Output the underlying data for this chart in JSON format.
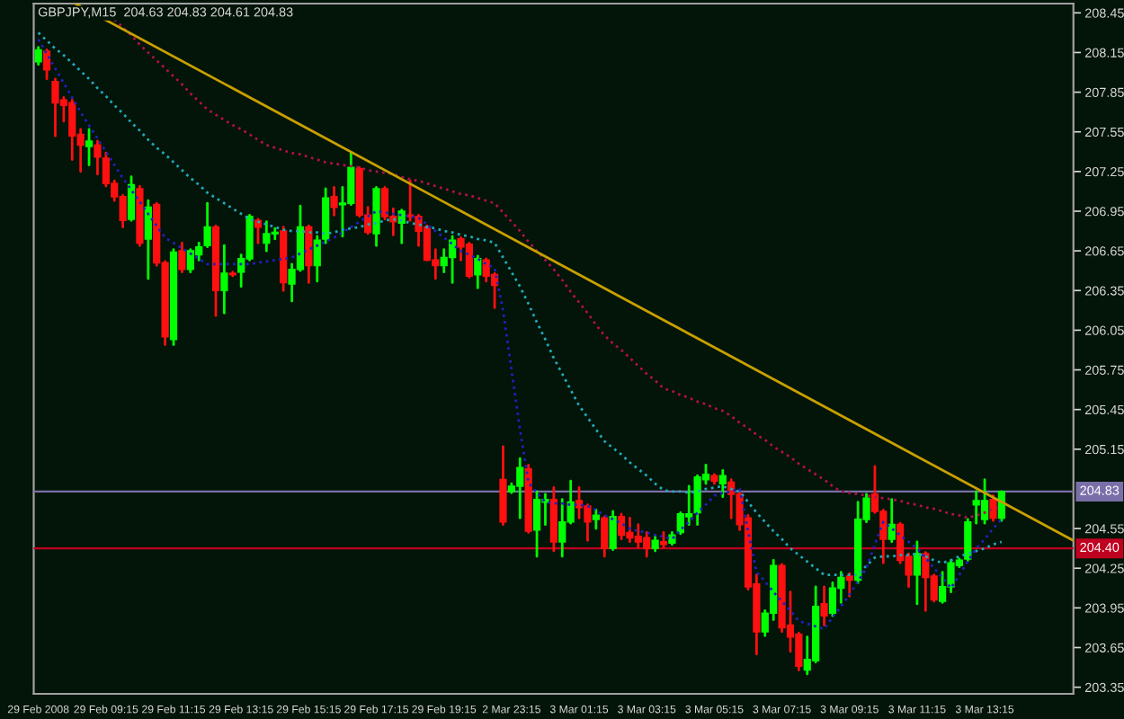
{
  "chart_data": {
    "type": "candlestick",
    "title": "GBPJPY,M15  204.63 204.83 204.61 204.83",
    "categories": [
      "29 Feb 2008",
      null,
      null,
      null,
      null,
      null,
      null,
      null,
      "29 Feb 09:15",
      null,
      null,
      null,
      null,
      null,
      null,
      null,
      "29 Feb 11:15",
      null,
      null,
      null,
      null,
      null,
      null,
      null,
      "29 Feb 13:15",
      null,
      null,
      null,
      null,
      null,
      null,
      null,
      "29 Feb 15:15",
      null,
      null,
      null,
      null,
      null,
      null,
      null,
      "29 Feb 17:15",
      null,
      null,
      null,
      null,
      null,
      null,
      null,
      "29 Feb 19:15",
      null,
      null,
      null,
      null,
      null,
      null,
      null,
      "2 Mar 23:15",
      null,
      null,
      null,
      null,
      null,
      null,
      null,
      "3 Mar 01:15",
      null,
      null,
      null,
      null,
      null,
      null,
      null,
      "3 Mar 03:15",
      null,
      null,
      null,
      null,
      null,
      null,
      null,
      "3 Mar 05:15",
      null,
      null,
      null,
      null,
      null,
      null,
      null,
      "3 Mar 07:15",
      null,
      null,
      null,
      null,
      null,
      null,
      null,
      "3 Mar 09:15",
      null,
      null,
      null,
      null,
      null,
      null,
      null,
      "3 Mar 11:15",
      null,
      null,
      null,
      null,
      null,
      null,
      null,
      "3 Mar 13:15",
      null,
      null
    ],
    "ohlc": [
      [
        208.08,
        208.19,
        208.06,
        208.17
      ],
      [
        208.16,
        208.17,
        207.95,
        208.02
      ],
      [
        207.93,
        207.95,
        207.52,
        207.77
      ],
      [
        207.79,
        207.81,
        207.63,
        207.75
      ],
      [
        207.77,
        207.79,
        207.34,
        207.52
      ],
      [
        207.53,
        207.57,
        207.25,
        207.45
      ],
      [
        207.44,
        207.57,
        207.3,
        207.48
      ],
      [
        207.45,
        207.48,
        207.23,
        207.36
      ],
      [
        207.35,
        207.39,
        207.14,
        207.16
      ],
      [
        207.16,
        207.18,
        207.03,
        207.06
      ],
      [
        207.06,
        207.07,
        206.83,
        206.88
      ],
      [
        206.89,
        207.21,
        206.88,
        207.15
      ],
      [
        207.12,
        207.14,
        206.69,
        206.71
      ],
      [
        206.74,
        207.03,
        206.44,
        206.98
      ],
      [
        207.0,
        207.01,
        206.54,
        206.56
      ],
      [
        206.56,
        206.57,
        205.94,
        206.0
      ],
      [
        205.98,
        206.66,
        205.94,
        206.64
      ],
      [
        206.65,
        206.71,
        206.49,
        206.51
      ],
      [
        206.51,
        206.66,
        206.49,
        206.65
      ],
      [
        206.62,
        206.71,
        206.58,
        206.68
      ],
      [
        206.69,
        207.01,
        206.68,
        206.83
      ],
      [
        206.83,
        206.84,
        206.16,
        206.35
      ],
      [
        206.35,
        206.69,
        206.18,
        206.48
      ],
      [
        206.48,
        206.49,
        206.46,
        206.47
      ],
      [
        206.49,
        206.62,
        206.38,
        206.59
      ],
      [
        206.59,
        206.92,
        206.58,
        206.91
      ],
      [
        206.88,
        206.89,
        206.71,
        206.83
      ],
      [
        206.71,
        206.87,
        206.65,
        206.78
      ],
      [
        206.78,
        206.82,
        206.74,
        206.79
      ],
      [
        206.8,
        206.83,
        206.35,
        206.41
      ],
      [
        206.4,
        206.55,
        206.27,
        206.51
      ],
      [
        206.51,
        206.99,
        206.5,
        206.83
      ],
      [
        206.83,
        206.84,
        206.41,
        206.54
      ],
      [
        206.54,
        206.76,
        206.42,
        206.73
      ],
      [
        206.74,
        207.12,
        206.71,
        207.05
      ],
      [
        207.06,
        207.13,
        206.92,
        206.98
      ],
      [
        207.0,
        207.13,
        206.76,
        207.01
      ],
      [
        207.01,
        207.39,
        207.0,
        207.28
      ],
      [
        207.27,
        207.28,
        206.91,
        206.92
      ],
      [
        206.92,
        206.98,
        206.78,
        206.79
      ],
      [
        206.78,
        207.13,
        206.69,
        207.12
      ],
      [
        207.12,
        207.13,
        206.89,
        206.91
      ],
      [
        206.91,
        206.97,
        206.77,
        206.87
      ],
      [
        206.86,
        206.96,
        206.71,
        206.95
      ],
      [
        206.92,
        207.18,
        206.88,
        206.91
      ],
      [
        206.91,
        206.92,
        206.69,
        206.8
      ],
      [
        206.83,
        206.84,
        206.58,
        206.58
      ],
      [
        206.58,
        206.66,
        206.44,
        206.54
      ],
      [
        206.54,
        206.66,
        206.49,
        206.6
      ],
      [
        206.6,
        206.76,
        206.41,
        206.73
      ],
      [
        206.74,
        206.75,
        206.58,
        206.68
      ],
      [
        206.7,
        206.71,
        206.45,
        206.46
      ],
      [
        206.47,
        206.61,
        206.37,
        206.59
      ],
      [
        206.58,
        206.59,
        206.42,
        206.46
      ],
      [
        206.47,
        206.48,
        206.22,
        206.39
      ],
      [
        204.92,
        205.17,
        204.58,
        204.6
      ],
      [
        204.83,
        204.89,
        204.82,
        204.87
      ],
      [
        204.87,
        205.08,
        204.63,
        205.01
      ],
      [
        205.0,
        205.03,
        204.52,
        204.53
      ],
      [
        204.54,
        204.83,
        204.34,
        204.77
      ],
      [
        204.75,
        204.81,
        204.58,
        204.77
      ],
      [
        204.77,
        204.86,
        204.38,
        204.45
      ],
      [
        204.45,
        204.77,
        204.34,
        204.6
      ],
      [
        204.6,
        204.91,
        204.59,
        204.75
      ],
      [
        204.76,
        204.86,
        204.63,
        204.71
      ],
      [
        204.72,
        204.73,
        204.46,
        204.6
      ],
      [
        204.62,
        204.69,
        204.55,
        204.65
      ],
      [
        204.63,
        204.64,
        204.34,
        204.4
      ],
      [
        204.4,
        204.68,
        204.39,
        204.64
      ],
      [
        204.64,
        204.66,
        204.47,
        204.5
      ],
      [
        204.52,
        204.63,
        204.45,
        204.48
      ],
      [
        204.49,
        204.58,
        204.41,
        204.45
      ],
      [
        204.48,
        204.52,
        204.34,
        204.4
      ],
      [
        204.4,
        204.49,
        204.38,
        204.46
      ],
      [
        204.45,
        204.52,
        204.41,
        204.43
      ],
      [
        204.44,
        204.52,
        204.43,
        204.5
      ],
      [
        204.52,
        204.67,
        204.51,
        204.66
      ],
      [
        204.64,
        204.87,
        204.58,
        204.66
      ],
      [
        204.67,
        204.95,
        204.58,
        204.94
      ],
      [
        204.92,
        205.03,
        204.89,
        204.96
      ],
      [
        204.95,
        204.96,
        204.89,
        204.91
      ],
      [
        204.89,
        204.99,
        204.79,
        204.95
      ],
      [
        204.9,
        204.92,
        204.63,
        204.81
      ],
      [
        204.81,
        204.82,
        204.54,
        204.58
      ],
      [
        204.63,
        204.65,
        204.09,
        204.11
      ],
      [
        204.13,
        204.2,
        203.6,
        203.77
      ],
      [
        203.77,
        203.93,
        203.74,
        203.91
      ],
      [
        203.91,
        204.31,
        203.86,
        204.27
      ],
      [
        204.27,
        204.28,
        203.77,
        203.8
      ],
      [
        203.82,
        204.07,
        203.62,
        203.73
      ],
      [
        203.75,
        203.76,
        203.48,
        203.51
      ],
      [
        203.48,
        203.73,
        203.45,
        203.56
      ],
      [
        203.55,
        204.11,
        203.54,
        203.96
      ],
      [
        203.98,
        204.11,
        203.82,
        203.89
      ],
      [
        203.91,
        204.14,
        203.89,
        204.1
      ],
      [
        204.1,
        204.22,
        203.99,
        204.18
      ],
      [
        204.19,
        204.21,
        204.04,
        204.16
      ],
      [
        204.16,
        204.75,
        204.14,
        204.62
      ],
      [
        204.62,
        204.81,
        204.6,
        204.78
      ],
      [
        204.81,
        205.02,
        204.67,
        204.68
      ],
      [
        204.68,
        204.69,
        204.29,
        204.47
      ],
      [
        204.47,
        204.77,
        204.45,
        204.58
      ],
      [
        204.58,
        204.59,
        204.29,
        204.31
      ],
      [
        204.34,
        204.36,
        204.11,
        204.2
      ],
      [
        204.2,
        204.45,
        203.98,
        204.36
      ],
      [
        204.36,
        204.37,
        203.93,
        204.18
      ],
      [
        204.19,
        204.2,
        204.0,
        204.01
      ],
      [
        204.0,
        204.22,
        203.99,
        204.11
      ],
      [
        204.11,
        204.31,
        204.07,
        204.29
      ],
      [
        204.27,
        204.32,
        204.26,
        204.31
      ],
      [
        204.32,
        204.62,
        204.31,
        204.6
      ],
      [
        204.73,
        204.83,
        204.59,
        204.76
      ],
      [
        204.62,
        204.92,
        204.59,
        204.76
      ],
      [
        204.77,
        204.8,
        204.61,
        204.63
      ],
      [
        204.63,
        204.83,
        204.61,
        204.83
      ]
    ],
    "series": [
      {
        "type": "line",
        "color": "#1fa8b8",
        "line_style": "dotted",
        "values": [
          208.3,
          208.24,
          208.18,
          208.13,
          208.07,
          208.01,
          207.95,
          207.88,
          207.82,
          207.75,
          207.69,
          207.62,
          207.56,
          207.49,
          207.43,
          207.38,
          207.32,
          207.26,
          207.2,
          207.15,
          207.09,
          207.05,
          207.01,
          206.97,
          206.93,
          206.89,
          206.87,
          206.85,
          206.83,
          206.81,
          206.8,
          206.8,
          206.79,
          206.79,
          206.78,
          206.79,
          206.81,
          206.82,
          206.83,
          206.85,
          206.86,
          206.88,
          206.89,
          206.88,
          206.86,
          206.85,
          206.83,
          206.82,
          206.8,
          206.79,
          206.77,
          206.76,
          206.74,
          206.73,
          206.71,
          206.6,
          206.49,
          206.38,
          206.25,
          206.11,
          205.98,
          205.84,
          205.72,
          205.6,
          205.48,
          205.39,
          205.3,
          205.21,
          205.16,
          205.11,
          205.05,
          205.0,
          204.95,
          204.89,
          204.84,
          204.83,
          204.83,
          204.82,
          204.83,
          204.85,
          204.86,
          204.87,
          204.85,
          204.83,
          204.75,
          204.67,
          204.6,
          204.53,
          204.47,
          204.4,
          204.35,
          204.3,
          204.25,
          204.2,
          204.2,
          204.2,
          204.2,
          204.2,
          204.27,
          204.33,
          204.34,
          204.34,
          204.35,
          204.35,
          204.36,
          204.34,
          204.31,
          204.29,
          204.31,
          204.34,
          204.36,
          204.38,
          204.4,
          204.43,
          204.45
        ]
      },
      {
        "type": "line",
        "color": "#b0104a",
        "line_style": "dotted",
        "values": [
          null,
          null,
          null,
          null,
          null,
          null,
          null,
          null,
          null,
          208.4,
          208.34,
          208.28,
          208.21,
          208.15,
          208.09,
          208.03,
          207.97,
          207.91,
          207.84,
          207.78,
          207.72,
          207.68,
          207.64,
          207.6,
          207.57,
          207.53,
          207.49,
          207.45,
          207.43,
          207.41,
          207.39,
          207.38,
          207.36,
          207.34,
          207.32,
          207.31,
          207.3,
          207.29,
          207.28,
          207.26,
          207.25,
          207.24,
          207.23,
          207.21,
          207.19,
          207.18,
          207.16,
          207.14,
          207.12,
          207.1,
          207.08,
          207.07,
          207.05,
          207.03,
          207.01,
          206.94,
          206.87,
          206.8,
          206.72,
          206.65,
          206.58,
          206.51,
          206.43,
          206.34,
          206.26,
          206.18,
          206.09,
          206.01,
          205.95,
          205.9,
          205.84,
          205.78,
          205.72,
          205.67,
          205.61,
          205.59,
          205.56,
          205.54,
          205.51,
          205.49,
          205.46,
          205.44,
          205.4,
          205.35,
          205.31,
          205.26,
          205.22,
          205.17,
          205.13,
          205.09,
          205.04,
          205.0,
          204.96,
          204.92,
          204.87,
          204.83,
          204.82,
          204.81,
          204.8,
          204.79,
          204.78,
          204.77,
          204.76,
          204.74,
          204.73,
          204.71,
          204.7,
          204.68,
          204.66,
          204.65,
          204.63,
          204.65,
          204.67,
          204.7,
          204.72
        ]
      },
      {
        "type": "line",
        "color": "#2020c0",
        "line_style": "dotted",
        "values": [
          208.25,
          208.14,
          208.03,
          207.92,
          207.81,
          207.7,
          207.6,
          207.5,
          207.4,
          207.3,
          207.2,
          207.11,
          207.02,
          206.93,
          206.84,
          206.75,
          206.71,
          206.67,
          206.63,
          206.59,
          206.55,
          206.55,
          206.55,
          206.55,
          206.55,
          206.55,
          206.56,
          206.57,
          206.58,
          206.59,
          206.6,
          206.63,
          206.66,
          206.69,
          206.72,
          206.75,
          206.79,
          206.83,
          206.87,
          206.91,
          206.95,
          206.94,
          206.93,
          206.92,
          206.91,
          206.9,
          206.85,
          206.8,
          206.75,
          206.7,
          206.65,
          206.62,
          206.59,
          206.55,
          206.52,
          206.2,
          205.75,
          205.3,
          204.9,
          204.82,
          204.75,
          204.74,
          204.74,
          204.73,
          204.73,
          204.72,
          204.69,
          204.65,
          204.62,
          204.59,
          204.55,
          204.53,
          204.52,
          204.5,
          204.49,
          204.47,
          204.54,
          204.6,
          204.67,
          204.73,
          204.8,
          204.82,
          204.83,
          204.85,
          204.53,
          204.22,
          204.15,
          204.07,
          204.0,
          203.93,
          203.85,
          203.83,
          203.81,
          203.79,
          203.88,
          203.96,
          204.05,
          204.15,
          204.25,
          204.43,
          204.6,
          204.55,
          204.5,
          204.45,
          204.4,
          204.33,
          204.25,
          204.18,
          204.1,
          204.2,
          204.3,
          204.4,
          204.47,
          204.55,
          204.62
        ]
      },
      {
        "type": "line",
        "color": "#c8a000",
        "line_style": "solid",
        "x": [
          "29 Feb 15:15",
          "3 Mar 05:15"
        ],
        "values": [
          207.57,
          205.92
        ]
      }
    ],
    "ref_lines": [
      {
        "axis": "y",
        "value": 204.83,
        "label": "204.83",
        "color": "#7a6fa8"
      },
      {
        "axis": "y",
        "value": 204.4,
        "label": "204.40",
        "color": "#c00020"
      }
    ],
    "ylim": [
      203.3,
      208.52
    ],
    "yticks": [
      208.45,
      208.15,
      207.85,
      207.55,
      207.25,
      206.95,
      206.65,
      206.35,
      206.05,
      205.75,
      205.45,
      205.15,
      204.55,
      204.25,
      203.95,
      203.65,
      203.35
    ],
    "grid": false,
    "legend": false
  }
}
